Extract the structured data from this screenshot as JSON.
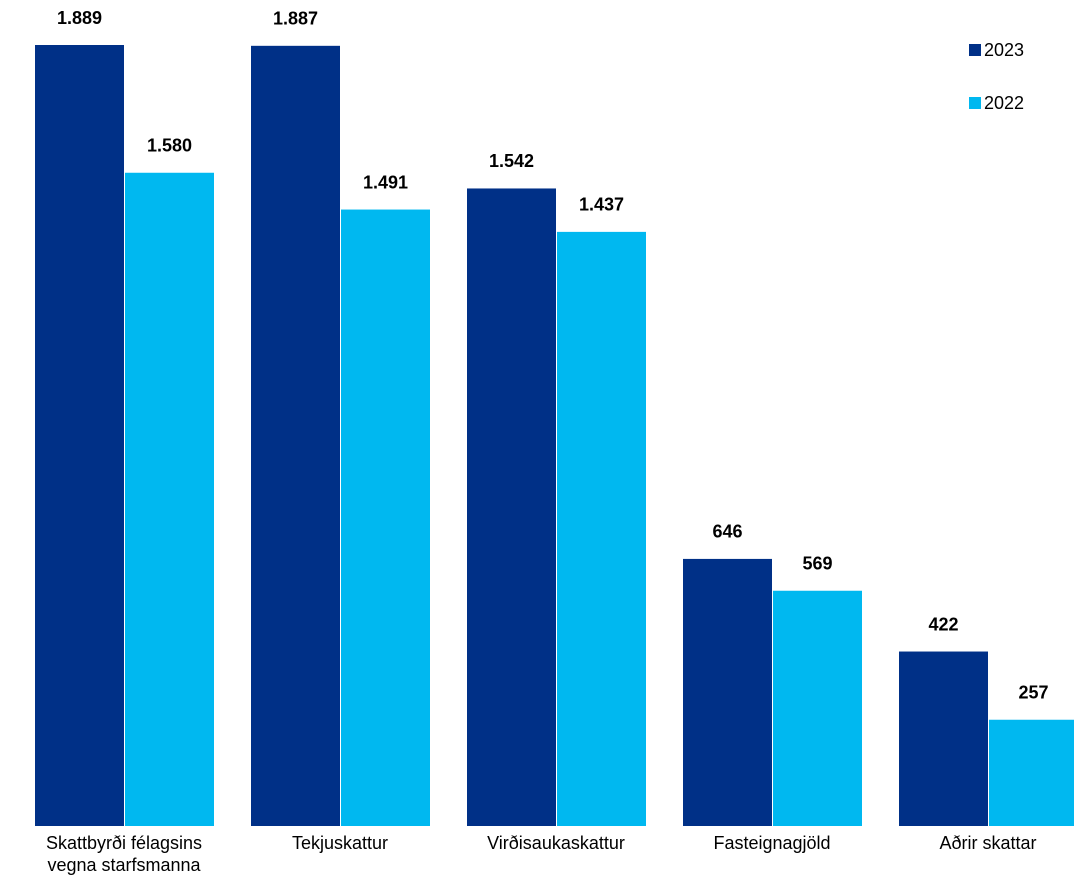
{
  "chart_data": {
    "type": "bar",
    "categories": [
      "Skattbyrði félagsins vegna starfsmanna",
      "Tekjuskattur",
      "Virðisaukaskattur",
      "Fasteignagjöld",
      "Aðrir skattar"
    ],
    "series": [
      {
        "name": "2023",
        "color": "#003087",
        "values": [
          1889,
          1887,
          1542,
          646,
          422
        ],
        "value_labels": [
          "1.889",
          "1.887",
          "1.542",
          "646",
          "422"
        ]
      },
      {
        "name": "2022",
        "color": "#00b8f0",
        "values": [
          1580,
          1491,
          1437,
          569,
          257
        ],
        "value_labels": [
          "1.580",
          "1.491",
          "1.437",
          "569",
          "257"
        ]
      }
    ],
    "legend": "top-right"
  }
}
